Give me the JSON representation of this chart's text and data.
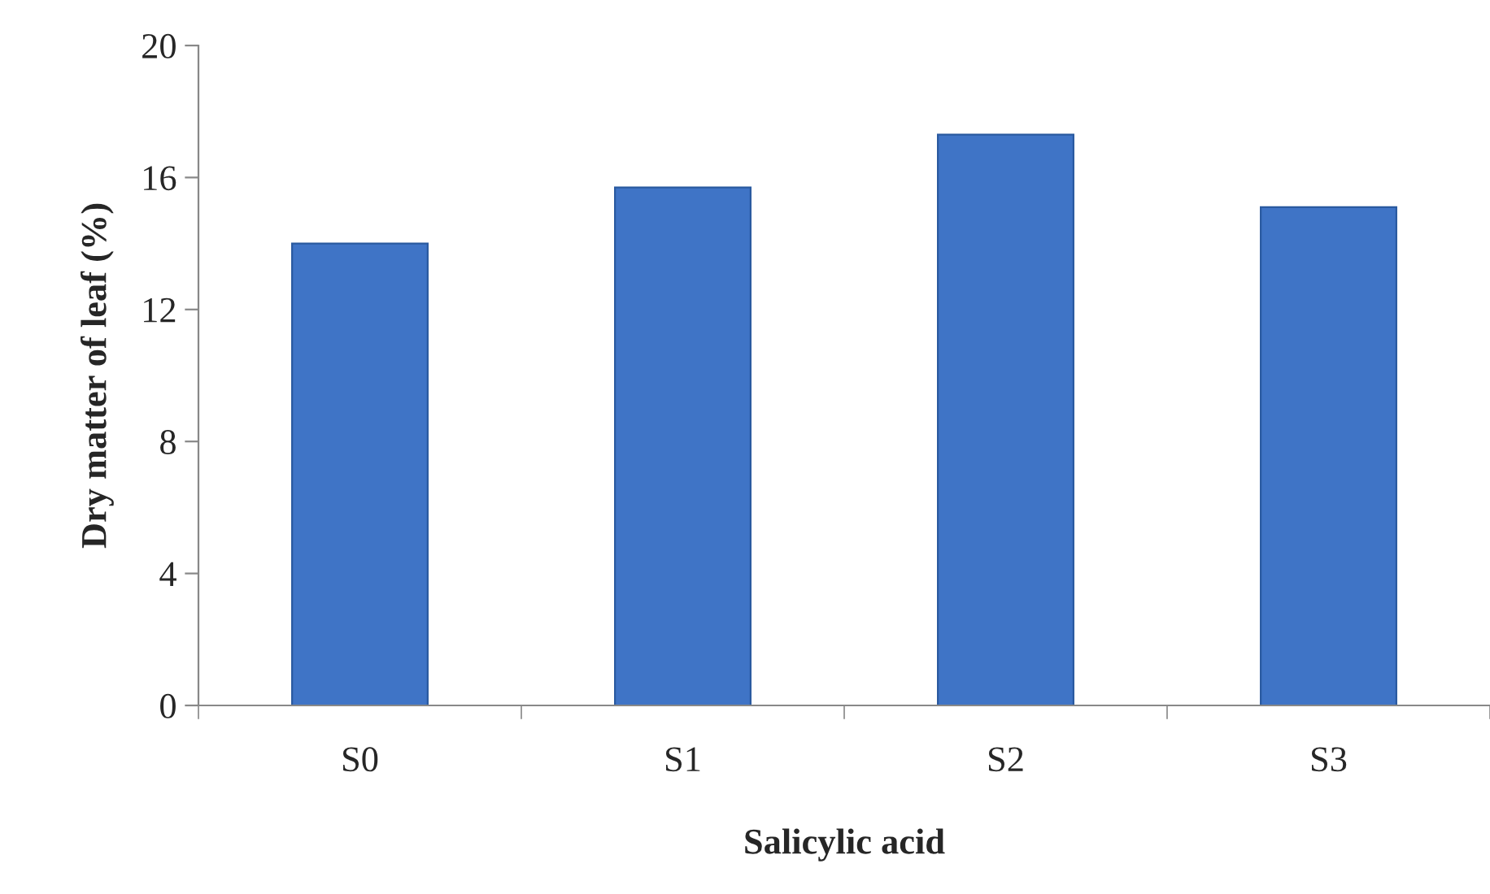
{
  "chart_data": {
    "type": "bar",
    "categories": [
      "S0",
      "S1",
      "S2",
      "S3"
    ],
    "values": [
      14.0,
      15.7,
      17.3,
      15.1
    ],
    "color": "#3f74c6",
    "xlabel": "Salicylic acid",
    "ylabel": "Dry matter of leaf (%)",
    "ylim": [
      0,
      20
    ],
    "yticks": [
      0,
      4,
      8,
      12,
      16,
      20
    ],
    "grid": false,
    "legend": false
  }
}
